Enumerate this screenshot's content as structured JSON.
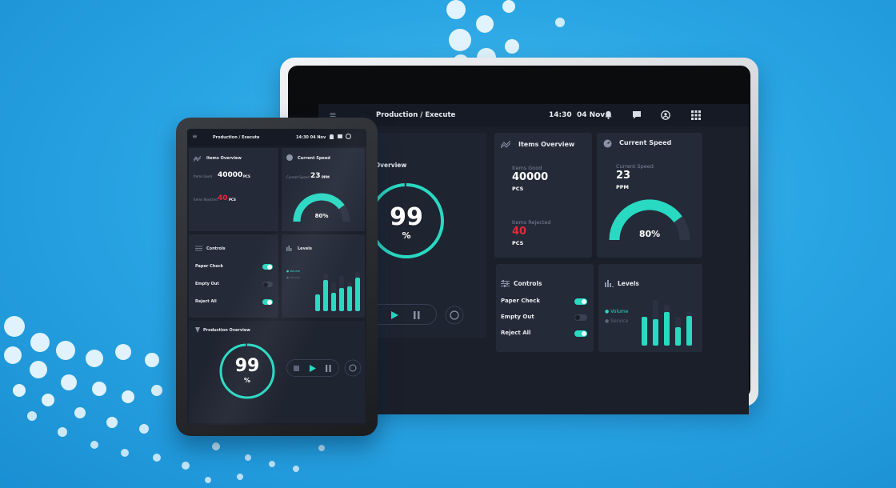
{
  "app": {
    "breadcrumb": "Production / Execute",
    "time": "14:30",
    "date": "04 Nov"
  },
  "icons": [
    "menu-icon",
    "bell-icon",
    "chat-icon",
    "user-icon",
    "apps-grid-icon",
    "items-overview-icon",
    "speedometer-icon",
    "controls-icon",
    "levels-icon",
    "stop-icon",
    "play-icon",
    "pause-icon",
    "reset-icon"
  ],
  "colors": {
    "accent": "#29d9c2",
    "reject": "#e8283a",
    "panel": "#242a38",
    "screen_bg": "#1b1f2a",
    "background": "#2aa6e4"
  },
  "production_overview": {
    "title": "Production Overview",
    "value": "99",
    "unit": "%",
    "progress": 0.99
  },
  "items_overview": {
    "title": "Items Overview",
    "good_label": "Items Good",
    "good_value": "40000",
    "good_unit": "PCS",
    "rejected_label": "Items Rejected",
    "rejected_value": "40",
    "rejected_unit": "PCS"
  },
  "current_speed": {
    "title": "Current Speed",
    "label": "Current Speed",
    "value": "23",
    "unit": "PPM",
    "gauge_text": "80%",
    "gauge_fraction": 0.8
  },
  "controls": {
    "title": "Controls",
    "items": [
      {
        "label": "Paper Check",
        "on": true
      },
      {
        "label": "Empty Out",
        "on": false
      },
      {
        "label": "Reject All",
        "on": true
      }
    ]
  },
  "levels": {
    "title": "Levels",
    "legend": [
      {
        "label": "Volume"
      },
      {
        "label": "Service"
      }
    ],
    "bars": [
      {
        "service": 0.55,
        "volume": 0.6
      },
      {
        "service": 0.95,
        "volume": 0.55
      },
      {
        "service": 0.85,
        "volume": 0.7
      },
      {
        "service": 0.6,
        "volume": 0.38
      },
      {
        "service": 0.7,
        "volume": 0.62
      }
    ]
  },
  "tablet_levels": {
    "bars": [
      {
        "service": 0.4,
        "volume": 0.4
      },
      {
        "service": 0.9,
        "volume": 0.75
      },
      {
        "service": 0.7,
        "volume": 0.45
      },
      {
        "service": 0.85,
        "volume": 0.55
      },
      {
        "service": 0.7,
        "volume": 0.6
      },
      {
        "service": 0.95,
        "volume": 0.8
      }
    ]
  }
}
